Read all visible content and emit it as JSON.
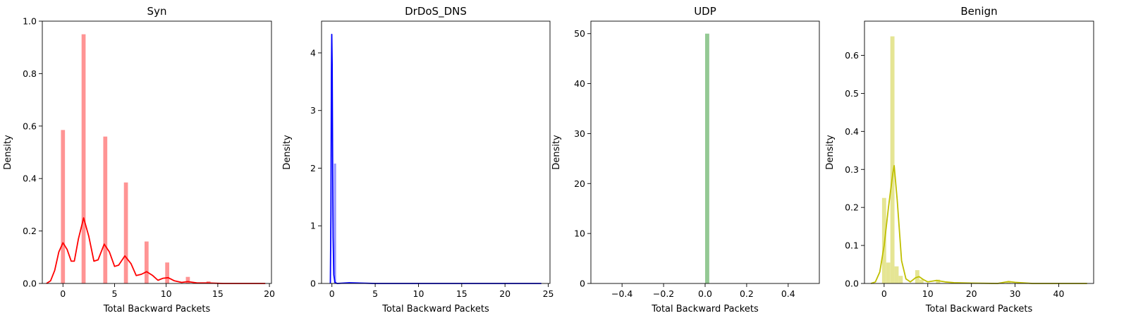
{
  "figure": {
    "background": "#ffffff"
  },
  "chart_data": [
    {
      "type": "histogram+kde",
      "title": "Syn",
      "xlabel": "Total Backward Packets",
      "ylabel": "Density",
      "xlim": [
        -2,
        20.2
      ],
      "ylim": [
        0,
        1.0
      ],
      "xticks": [
        0,
        5,
        10,
        15,
        20
      ],
      "yticks": [
        0.0,
        0.2,
        0.4,
        0.6,
        0.8,
        1.0
      ],
      "ytick_format": 1,
      "color": "#ff0000",
      "bar_color": "#ff9494",
      "bar_width": 0.39,
      "bars": [
        {
          "x": 0,
          "y": 0.585
        },
        {
          "x": 2,
          "y": 0.95
        },
        {
          "x": 4.1,
          "y": 0.56
        },
        {
          "x": 6.1,
          "y": 0.385
        },
        {
          "x": 8.1,
          "y": 0.16
        },
        {
          "x": 10.1,
          "y": 0.08
        },
        {
          "x": 12.1,
          "y": 0.025
        },
        {
          "x": 14.1,
          "y": 0.008
        }
      ],
      "kde": [
        [
          -1.6,
          0.0
        ],
        [
          -1.2,
          0.01
        ],
        [
          -0.8,
          0.05
        ],
        [
          -0.4,
          0.12
        ],
        [
          0.0,
          0.155
        ],
        [
          0.4,
          0.13
        ],
        [
          0.8,
          0.085
        ],
        [
          1.1,
          0.085
        ],
        [
          1.5,
          0.17
        ],
        [
          2.0,
          0.25
        ],
        [
          2.5,
          0.18
        ],
        [
          3.0,
          0.085
        ],
        [
          3.4,
          0.09
        ],
        [
          4.0,
          0.15
        ],
        [
          4.5,
          0.12
        ],
        [
          5.0,
          0.065
        ],
        [
          5.4,
          0.07
        ],
        [
          6.0,
          0.105
        ],
        [
          6.6,
          0.075
        ],
        [
          7.1,
          0.03
        ],
        [
          7.6,
          0.035
        ],
        [
          8.1,
          0.045
        ],
        [
          8.7,
          0.03
        ],
        [
          9.2,
          0.012
        ],
        [
          9.7,
          0.02
        ],
        [
          10.2,
          0.022
        ],
        [
          10.8,
          0.01
        ],
        [
          11.5,
          0.004
        ],
        [
          12.1,
          0.007
        ],
        [
          13.0,
          0.002
        ],
        [
          14.0,
          0.002
        ],
        [
          15.5,
          0.0
        ],
        [
          19.6,
          0.0
        ]
      ]
    },
    {
      "type": "histogram+kde",
      "title": "DrDoS_DNS",
      "xlabel": "Total Backward Packets",
      "ylabel": "Density",
      "xlim": [
        -1.2,
        25.2
      ],
      "ylim": [
        0,
        4.55
      ],
      "xticks": [
        0,
        5,
        10,
        15,
        20,
        25
      ],
      "yticks": [
        0,
        1,
        2,
        3,
        4
      ],
      "ytick_format": 0,
      "color": "#0000ff",
      "bar_color": "#9494ff",
      "bar_width": 0.24,
      "bars": [
        {
          "x": 0.36,
          "y": 2.08
        }
      ],
      "kde": [
        [
          -0.18,
          0.0
        ],
        [
          -0.12,
          1.2
        ],
        [
          -0.06,
          3.6
        ],
        [
          -0.02,
          4.32
        ],
        [
          0.03,
          3.8
        ],
        [
          0.08,
          2.2
        ],
        [
          0.14,
          0.8
        ],
        [
          0.22,
          0.15
        ],
        [
          0.35,
          0.02
        ],
        [
          0.6,
          0.0
        ],
        [
          2.0,
          0.012
        ],
        [
          5.0,
          0.0
        ],
        [
          24.2,
          0.0
        ]
      ]
    },
    {
      "type": "histogram",
      "title": "UDP",
      "xlabel": "Total Backward Packets",
      "ylabel": "Density",
      "xlim": [
        -0.55,
        0.55
      ],
      "ylim": [
        0,
        52.5
      ],
      "xticks": [
        -0.4,
        -0.2,
        0.0,
        0.2,
        0.4
      ],
      "yticks": [
        0,
        10,
        20,
        30,
        40,
        50
      ],
      "ytick_format": 0,
      "xtick_format": 1,
      "color": "#008000",
      "bar_color": "#94c994",
      "bar_width": 0.02,
      "bars": [
        {
          "x": 0.01,
          "y": 50
        }
      ],
      "kde": []
    },
    {
      "type": "histogram+kde",
      "title": "Benign",
      "xlabel": "Total Backward Packets",
      "ylabel": "Density",
      "xlim": [
        -4.5,
        48
      ],
      "ylim": [
        0,
        0.69
      ],
      "xticks": [
        0,
        10,
        20,
        30,
        40
      ],
      "yticks": [
        0.0,
        0.1,
        0.2,
        0.3,
        0.4,
        0.5,
        0.6
      ],
      "ytick_format": 1,
      "color": "#bfbf00",
      "bar_color": "#e5e594",
      "bar_width": 0.95,
      "bars": [
        {
          "x": 0.0,
          "y": 0.225
        },
        {
          "x": 0.95,
          "y": 0.055
        },
        {
          "x": 1.9,
          "y": 0.65
        },
        {
          "x": 2.85,
          "y": 0.045
        },
        {
          "x": 3.8,
          "y": 0.02
        },
        {
          "x": 7.6,
          "y": 0.035
        },
        {
          "x": 8.55,
          "y": 0.01
        },
        {
          "x": 12.35,
          "y": 0.01
        },
        {
          "x": 28.5,
          "y": 0.005
        }
      ],
      "kde": [
        [
          -3.0,
          0.0
        ],
        [
          -2.0,
          0.004
        ],
        [
          -1.0,
          0.03
        ],
        [
          0.0,
          0.1
        ],
        [
          1.0,
          0.2
        ],
        [
          2.0,
          0.29
        ],
        [
          2.3,
          0.31
        ],
        [
          3.0,
          0.22
        ],
        [
          4.0,
          0.06
        ],
        [
          5.0,
          0.012
        ],
        [
          6.0,
          0.004
        ],
        [
          7.2,
          0.015
        ],
        [
          8.0,
          0.018
        ],
        [
          9.0,
          0.01
        ],
        [
          10.0,
          0.004
        ],
        [
          12.0,
          0.008
        ],
        [
          14.0,
          0.004
        ],
        [
          16.0,
          0.002
        ],
        [
          20.0,
          0.001
        ],
        [
          26.0,
          0.0
        ],
        [
          28.5,
          0.005
        ],
        [
          30.0,
          0.003
        ],
        [
          34.0,
          0.0
        ],
        [
          46.5,
          0.0
        ]
      ]
    }
  ]
}
